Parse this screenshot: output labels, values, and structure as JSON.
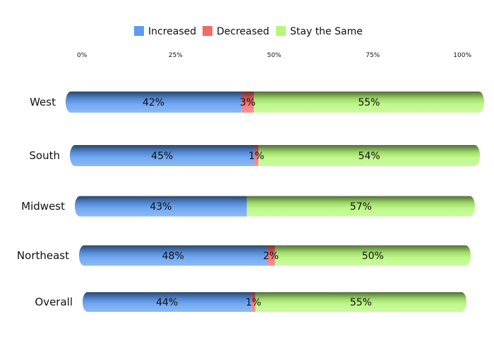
{
  "chart_data": {
    "type": "bar",
    "orientation": "horizontal",
    "stacked": true,
    "percent_stacked": true,
    "categories": [
      "West",
      "South",
      "Midwest",
      "Northeast",
      "Overall"
    ],
    "series": [
      {
        "name": "Increased",
        "color": "#5f9cf0",
        "values": [
          42,
          45,
          43,
          48,
          44
        ],
        "labels": [
          "42%",
          "45%",
          "43%",
          "48%",
          "44%"
        ]
      },
      {
        "name": "Decreased",
        "color": "#f06a6a",
        "values": [
          3,
          1,
          0,
          2,
          1
        ],
        "labels": [
          "3%",
          "1%",
          "",
          "2%",
          "1%"
        ]
      },
      {
        "name": "Stay the Same",
        "color": "#b6f77a",
        "values": [
          55,
          54,
          57,
          50,
          55
        ],
        "labels": [
          "55%",
          "54%",
          "57%",
          "50%",
          "55%"
        ]
      }
    ],
    "xticks": [
      "0%",
      "25%",
      "50%",
      "75%",
      "100%"
    ],
    "xlim": [
      0,
      100
    ],
    "legend_position": "top",
    "grid": false,
    "title": "",
    "xlabel": "",
    "ylabel": ""
  }
}
